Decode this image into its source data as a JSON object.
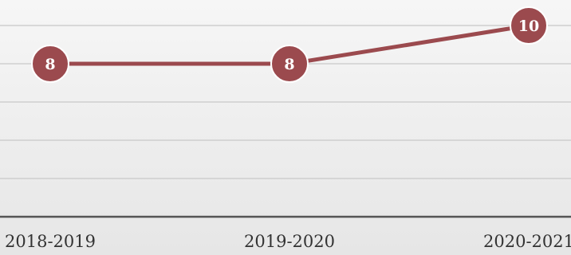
{
  "chart_data": {
    "type": "line",
    "title": "",
    "xlabel": "",
    "ylabel": "",
    "categories": [
      "2018-2019",
      "2019-2020",
      "2020-2021"
    ],
    "series": [
      {
        "values": [
          8,
          8,
          10
        ]
      }
    ],
    "ylim": [
      0,
      12
    ],
    "grid": true,
    "legend": "none",
    "colors": {
      "line": "#9b4a4e",
      "marker": "#9b4a4e",
      "marker_border": "#ffffff",
      "label_text": "#ffffff",
      "grid": "#c8c8c8",
      "axis": "#555555",
      "tick_text": "#333333"
    }
  }
}
